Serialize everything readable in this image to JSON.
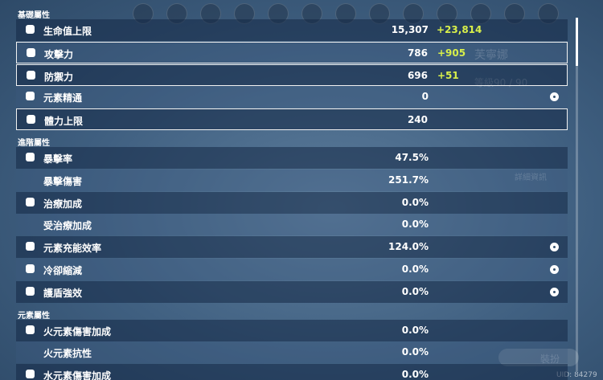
{
  "character": {
    "name": "芙寧娜",
    "level": "等級90 / 90",
    "details_button": "詳細資訊",
    "action_button": "裝扮",
    "uid": "UID: 84279"
  },
  "sections": [
    {
      "title": "基礎屬性",
      "rows": [
        {
          "label": "生命值上限",
          "value": "15,307",
          "bonus": "+23,814"
        },
        {
          "label": "攻擊力",
          "value": "786",
          "bonus": "+905",
          "outlined": true
        },
        {
          "label": "防禦力",
          "value": "696",
          "bonus": "+51",
          "outlined": true
        },
        {
          "label": "元素精通",
          "value": "0"
        },
        {
          "label": "體力上限",
          "value": "240",
          "outlined": true
        }
      ]
    },
    {
      "title": "進階屬性",
      "rows": [
        {
          "label": "暴擊率",
          "value": "47.5%"
        },
        {
          "label": "暴擊傷害",
          "value": "251.7%"
        },
        {
          "label": "治療加成",
          "value": "0.0%"
        },
        {
          "label": "受治療加成",
          "value": "0.0%"
        },
        {
          "label": "元素充能效率",
          "value": "124.0%"
        },
        {
          "label": "冷卻縮減",
          "value": "0.0%"
        },
        {
          "label": "護盾強效",
          "value": "0.0%"
        }
      ]
    },
    {
      "title": "元素屬性",
      "rows": [
        {
          "label": "火元素傷害加成",
          "value": "0.0%"
        },
        {
          "label": "火元素抗性",
          "value": "0.0%"
        },
        {
          "label": "水元素傷害加成",
          "value": "0.0%"
        }
      ]
    }
  ]
}
